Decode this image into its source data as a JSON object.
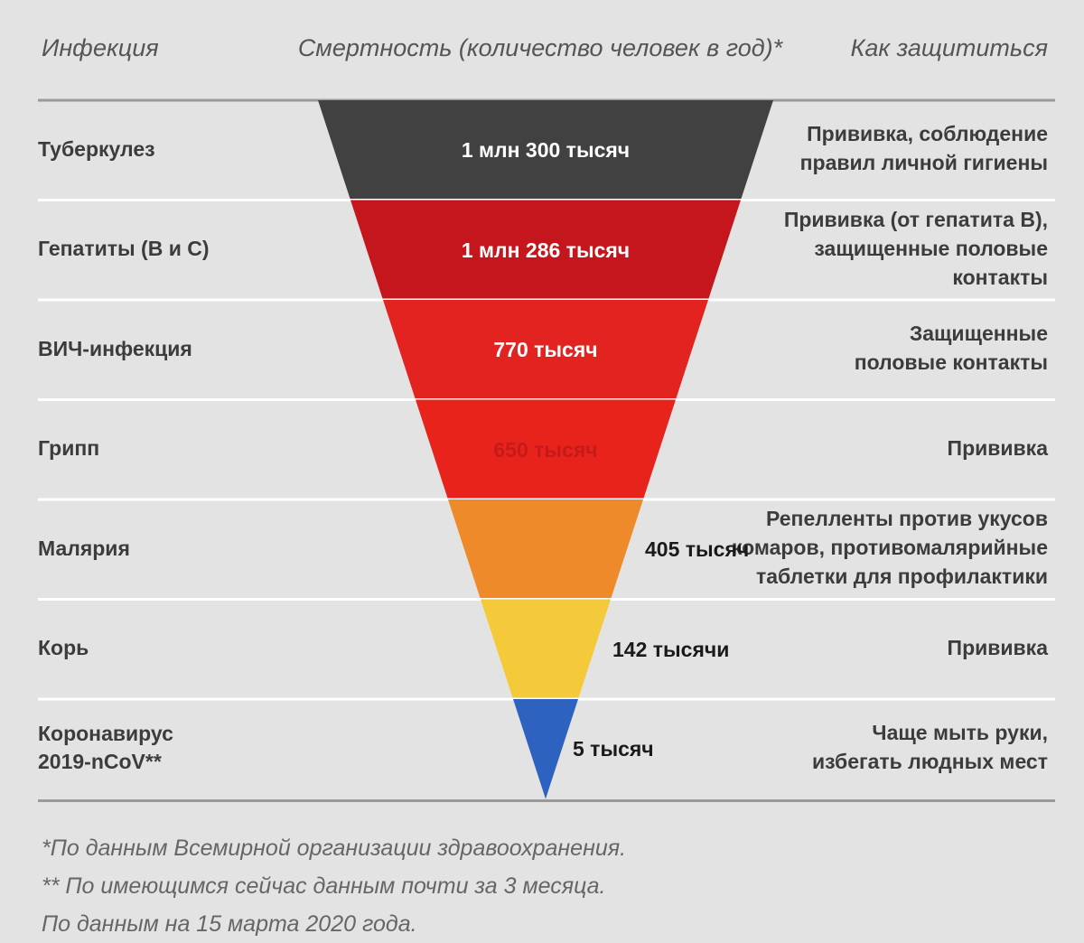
{
  "header": {
    "infection": "Инфекция",
    "mortality": "Смертность (количество человек в год)*",
    "protection": "Как защититься"
  },
  "rows": [
    {
      "infection": "Туберкулез",
      "value_label": "1 млн 300 тысяч",
      "protection": "Прививка, соблюдение\nправил личной гигиены",
      "color": "#414141"
    },
    {
      "infection": "Гепатиты (В и С)",
      "value_label": "1 млн 286 тысяч",
      "protection": "Прививка (от гепатита В),\nзащищенные половые\nконтакты",
      "color": "#c4161c"
    },
    {
      "infection": "ВИЧ-инфекция",
      "value_label": "770 тысяч",
      "protection": "Защищенные\nполовые контакты",
      "color": "#e2231f"
    },
    {
      "infection": "Грипп",
      "value_label": "650 тысяч",
      "protection": "Прививка",
      "color": "#e8231c"
    },
    {
      "infection": "Малярия",
      "value_label": "405 тысяч",
      "protection": "Репелленты против укусов\nкомаров, противомалярийные\nтаблетки для профилактики",
      "color": "#ee8a2a"
    },
    {
      "infection": "Корь",
      "value_label": "142 тысячи",
      "protection": "Прививка",
      "color": "#f4c93a"
    },
    {
      "infection": "Коронавирус\n2019-nCoV**",
      "value_label": "5 тысяч",
      "protection": "Чаще мыть руки,\nизбегать людных мест",
      "color": "#2e62c0"
    }
  ],
  "chart_data": {
    "type": "funnel",
    "categories": [
      "Туберкулез",
      "Гепатиты (В и С)",
      "ВИЧ-инфекция",
      "Грипп",
      "Малярия",
      "Корь",
      "Коронавирус 2019-nCoV**"
    ],
    "values": [
      1300000,
      1286000,
      770000,
      650000,
      405000,
      142000,
      5000
    ],
    "value_labels": [
      "1 млн 300 тысяч",
      "1 млн 286 тысяч",
      "770 тысяч",
      "650 тысяч",
      "405 тысяч",
      "142 тысячи",
      "5 тысяч"
    ],
    "title": "Смертность (количество человек в год)*"
  },
  "notes": [
    "*По данным Всемирной организации здравоохранения.",
    "** По имеющимся сейчас данным почти за 3 месяца.",
    "По данным на 15 марта 2020 года."
  ]
}
